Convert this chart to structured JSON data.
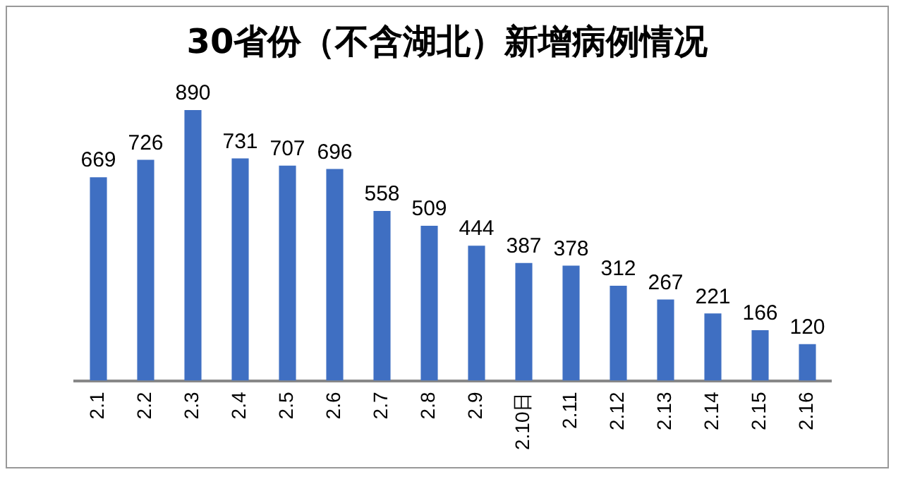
{
  "chart_data": {
    "type": "bar",
    "title": "30省份（不含湖北）新增病例情况",
    "categories": [
      "2.1",
      "2.2",
      "2.3",
      "2.4",
      "2.5",
      "2.6",
      "2.7",
      "2.8",
      "2.9",
      "2.10日",
      "2.11",
      "2.12",
      "2.13",
      "2.14",
      "2.15",
      "2.16"
    ],
    "values": [
      669,
      726,
      890,
      731,
      707,
      696,
      558,
      509,
      444,
      387,
      378,
      312,
      267,
      221,
      166,
      120
    ],
    "color": "#3f6fc2",
    "data_labels": true,
    "grid": false,
    "legend": false
  }
}
